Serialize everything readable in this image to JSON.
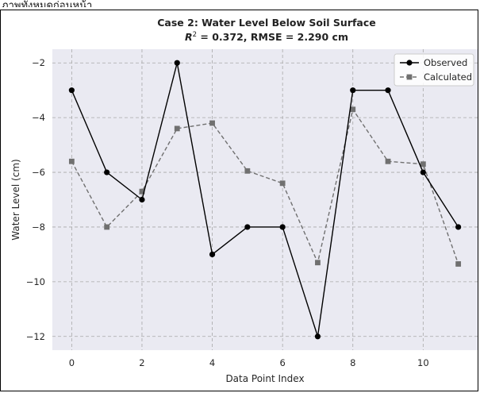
{
  "page_caption": "ภาพทั้งหมดก่อนหน้า",
  "chart_data": {
    "type": "line",
    "title": "Case 2: Water Level Below Soil Surface",
    "subtitle_prefix": "R",
    "subtitle_sup": "2",
    "subtitle_rest": " = 0.372, RMSE = 2.290 cm",
    "xlabel": "Data Point Index",
    "ylabel": "Water Level (cm)",
    "xlim": [
      -0.55,
      11.55
    ],
    "ylim": [
      -12.5,
      -1.5
    ],
    "xticks": [
      0,
      2,
      4,
      6,
      8,
      10
    ],
    "yticks": [
      -12,
      -10,
      -8,
      -6,
      -4,
      -2
    ],
    "grid": true,
    "legend_position": "top-right",
    "x": [
      0,
      1,
      2,
      3,
      4,
      5,
      6,
      7,
      8,
      9,
      10,
      11
    ],
    "series": [
      {
        "name": "Observed",
        "color": "#000000",
        "line_style": "solid",
        "marker": "circle",
        "values": [
          -3,
          -6,
          -7,
          -2,
          -9,
          -8,
          -8,
          -12,
          -3,
          -3,
          -6,
          -8
        ]
      },
      {
        "name": "Calculated",
        "color": "#707070",
        "line_style": "dashed",
        "marker": "square",
        "values": [
          -5.6,
          -8.0,
          -6.7,
          -4.4,
          -4.2,
          -5.95,
          -6.4,
          -9.3,
          -3.7,
          -5.6,
          -5.7,
          -9.35
        ]
      }
    ],
    "plot_background": "#eaeaf2"
  }
}
